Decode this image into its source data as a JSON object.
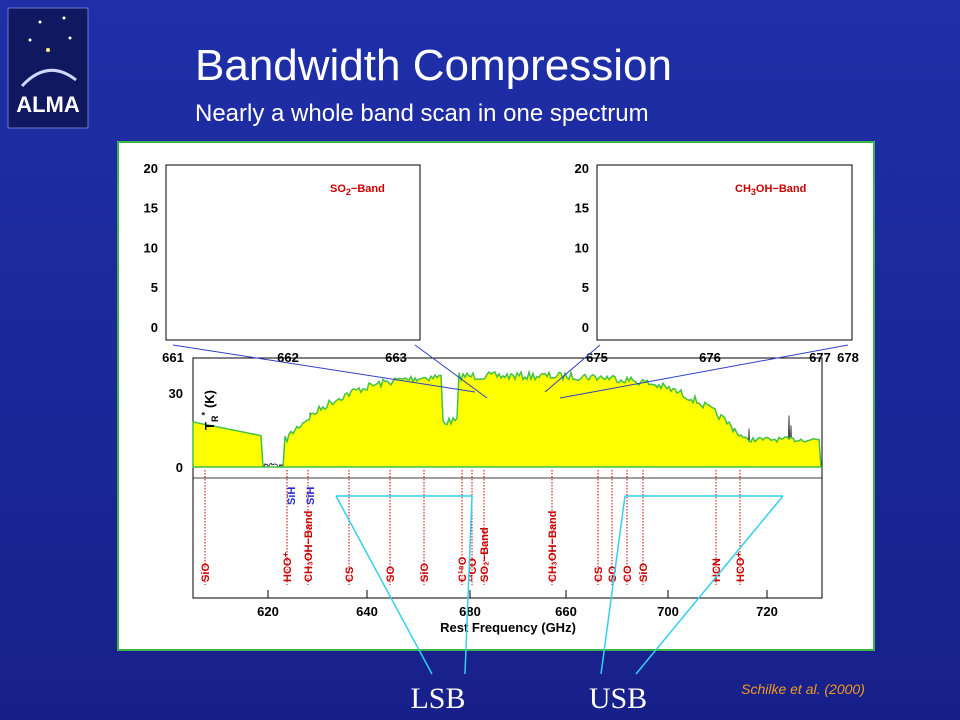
{
  "logo": {
    "text": "ALMA"
  },
  "header": {
    "title": "Bandwidth Compression",
    "subtitle": "Nearly a whole band scan in one spectrum"
  },
  "figure": {
    "main": {
      "x_label": "Rest Frequency (GHz)",
      "y_label": "T",
      "y_label_sub": "R",
      "y_label_sup": "*",
      "y_label_unit": "(K)",
      "x_ticks": [
        "620",
        "640",
        "680",
        "660",
        "700",
        "720"
      ],
      "y_ticks": [
        "30",
        "0"
      ]
    },
    "inset_left": {
      "label": "SO",
      "label_sub": "2",
      "label_rest": "−Band",
      "x_ticks": [
        "661",
        "662",
        "663"
      ],
      "y_ticks": [
        "20",
        "15",
        "10",
        "5",
        "0"
      ]
    },
    "inset_right": {
      "label": "CH",
      "label_sub": "3",
      "label_rest": "OH−Band",
      "x_ticks": [
        "675",
        "676",
        "677",
        "678"
      ],
      "y_ticks": [
        "20",
        "15",
        "10",
        "5",
        "0"
      ]
    },
    "lines": [
      "SiO",
      "HCO⁺",
      "CH₃OH−Band",
      "CS",
      "SO",
      "SiO",
      "C¹⁸O",
      "¹³CO",
      "SO₂−Band",
      "CH₃OH−Band",
      "CS",
      "SO",
      "CO",
      "SiO",
      "HCN",
      "HCO⁺"
    ],
    "blue_lines": [
      "SiH",
      "SiH"
    ]
  },
  "bands": {
    "lower": "LSB",
    "upper": "USB"
  },
  "citation": "Schilke et al. (2000)"
}
